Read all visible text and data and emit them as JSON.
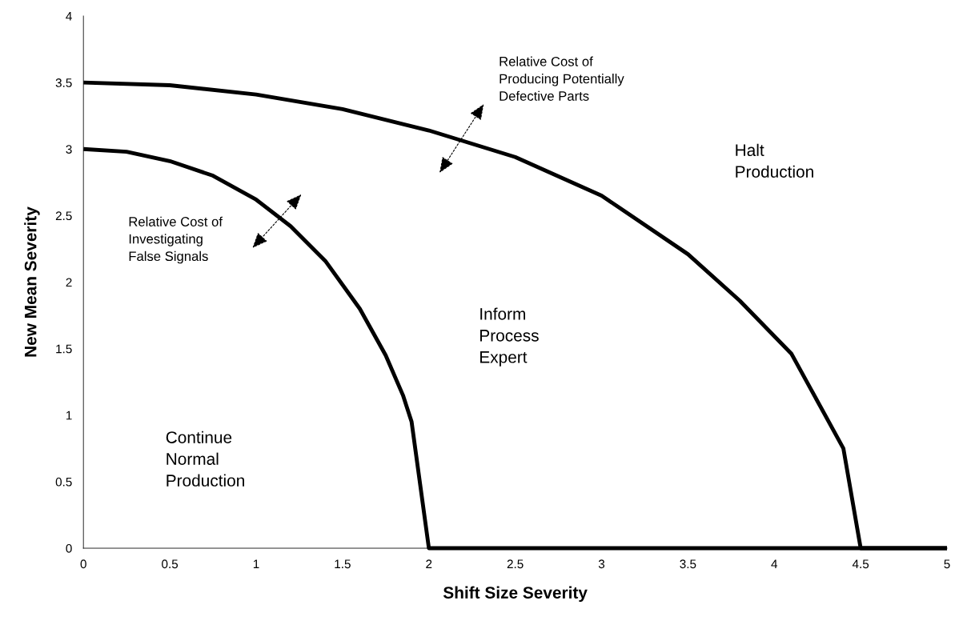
{
  "chart_data": {
    "type": "line",
    "xlabel": "Shift Size Severity",
    "ylabel": "New Mean Severity",
    "xlim": [
      0,
      5
    ],
    "ylim": [
      0,
      4
    ],
    "xticks": [
      0,
      0.5,
      1,
      1.5,
      2,
      2.5,
      3,
      3.5,
      4,
      4.5,
      5
    ],
    "yticks": [
      0,
      0.5,
      1,
      1.5,
      2,
      2.5,
      3,
      3.5,
      4
    ],
    "grid": false,
    "legend": false,
    "marker": "none",
    "line_style": "solid",
    "series": [
      {
        "color": "#000000",
        "x": [
          0,
          0.25,
          0.5,
          0.75,
          1.0,
          1.2,
          1.4,
          1.6,
          1.75,
          1.85,
          1.9,
          2.0,
          5
        ],
        "values": [
          3,
          2.98,
          2.91,
          2.8,
          2.62,
          2.42,
          2.16,
          1.8,
          1.45,
          1.15,
          0.95,
          0,
          0
        ]
      },
      {
        "color": "#000000",
        "x": [
          0,
          0.5,
          1,
          1.5,
          2,
          2.5,
          3,
          3.5,
          3.8,
          4.1,
          4.4,
          4.5,
          5
        ],
        "values": [
          3.5,
          3.48,
          3.41,
          3.3,
          3.14,
          2.94,
          2.65,
          2.21,
          1.86,
          1.46,
          0.75,
          0,
          0
        ]
      }
    ],
    "annotations": [
      "Relative Cost of\nInvestigating\nFalse Signals",
      "Relative Cost of\nProducing Potentially\nDefective Parts",
      "Continue\nNormal\nProduction",
      "Inform\nProcess\nExpert",
      "Halt\nProduction"
    ]
  }
}
